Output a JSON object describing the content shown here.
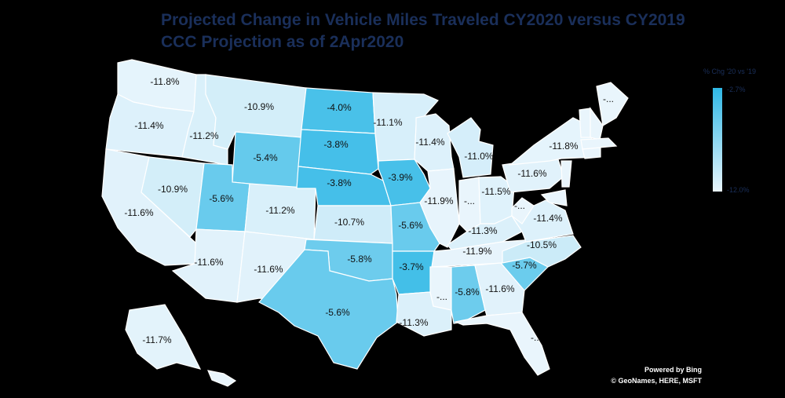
{
  "title": {
    "line1": "Projected Change in Vehicle Miles Traveled CY2020 versus CY2019",
    "line2": "CCC Projection as of 2Apr2020"
  },
  "legend": {
    "title": "% Chg '20 vs '19",
    "max_label": "-2.7%",
    "min_label": "-12.0%",
    "color_high": "#2fb8e6",
    "color_low": "#e9f5fc"
  },
  "attribution": {
    "line1": "Powered by Bing",
    "line2": "© GeoNames, HERE, MSFT"
  },
  "colors": {
    "background": "#000000",
    "title": "#1a2f5a",
    "state_border": "#ffffff"
  },
  "states": [
    {
      "code": "WA",
      "label": "-11.8%",
      "value": -11.8
    },
    {
      "code": "OR",
      "label": "-11.4%",
      "value": -11.4
    },
    {
      "code": "CA",
      "label": "-11.6%",
      "value": -11.6
    },
    {
      "code": "ID",
      "label": "-11.2%",
      "value": -11.2
    },
    {
      "code": "NV",
      "label": "-10.9%",
      "value": -10.9
    },
    {
      "code": "MT",
      "label": "-10.9%",
      "value": -10.9
    },
    {
      "code": "WY",
      "label": "-5.4%",
      "value": -5.4
    },
    {
      "code": "UT",
      "label": "-5.6%",
      "value": -5.6
    },
    {
      "code": "AZ",
      "label": "-11.6%",
      "value": -11.6
    },
    {
      "code": "CO",
      "label": "-11.2%",
      "value": -11.2
    },
    {
      "code": "NM",
      "label": "-11.6%",
      "value": -11.6
    },
    {
      "code": "ND",
      "label": "-4.0%",
      "value": -4.0
    },
    {
      "code": "SD",
      "label": "-3.8%",
      "value": -3.8
    },
    {
      "code": "NE",
      "label": "-3.8%",
      "value": -3.8
    },
    {
      "code": "KS",
      "label": "-10.7%",
      "value": -10.7
    },
    {
      "code": "OK",
      "label": "-5.8%",
      "value": -5.8
    },
    {
      "code": "TX",
      "label": "-5.6%",
      "value": -5.6
    },
    {
      "code": "MN",
      "label": "-11.1%",
      "value": -11.1
    },
    {
      "code": "IA",
      "label": "-3.9%",
      "value": -3.9
    },
    {
      "code": "MO",
      "label": "-5.6%",
      "value": -5.6
    },
    {
      "code": "AR",
      "label": "-3.7%",
      "value": -3.7
    },
    {
      "code": "LA",
      "label": "-11.3%",
      "value": -11.3
    },
    {
      "code": "WI",
      "label": "-11.4%",
      "value": -11.4
    },
    {
      "code": "IL",
      "label": "-11.9%",
      "value": -11.9
    },
    {
      "code": "MI",
      "label": "-11.0%",
      "value": -11.0
    },
    {
      "code": "IN",
      "label": "-...",
      "value": null
    },
    {
      "code": "OH",
      "label": "-11.5%",
      "value": -11.5
    },
    {
      "code": "KY",
      "label": "-11.3%",
      "value": -11.3
    },
    {
      "code": "TN",
      "label": "-11.9%",
      "value": -11.9
    },
    {
      "code": "MS",
      "label": "-...",
      "value": null
    },
    {
      "code": "AL",
      "label": "-5.8%",
      "value": -5.8
    },
    {
      "code": "GA",
      "label": "-11.6%",
      "value": -11.6
    },
    {
      "code": "FL",
      "label": "-...",
      "value": null
    },
    {
      "code": "SC",
      "label": "-5.7%",
      "value": -5.7
    },
    {
      "code": "NC",
      "label": "-10.5%",
      "value": -10.5
    },
    {
      "code": "VA",
      "label": "-11.4%",
      "value": -11.4
    },
    {
      "code": "WV",
      "label": "-...",
      "value": null
    },
    {
      "code": "PA",
      "label": "-11.6%",
      "value": -11.6
    },
    {
      "code": "NY",
      "label": "-11.8%",
      "value": -11.8
    },
    {
      "code": "ME",
      "label": "-...",
      "value": null
    },
    {
      "code": "VT",
      "label": "",
      "value": null
    },
    {
      "code": "NH",
      "label": "",
      "value": null
    },
    {
      "code": "MA",
      "label": "",
      "value": null
    },
    {
      "code": "CT",
      "label": "",
      "value": null
    },
    {
      "code": "NJ",
      "label": "",
      "value": null
    },
    {
      "code": "MD",
      "label": "",
      "value": null
    },
    {
      "code": "AK",
      "label": "-11.7%",
      "value": -11.7
    },
    {
      "code": "HI",
      "label": "",
      "value": null
    }
  ]
}
